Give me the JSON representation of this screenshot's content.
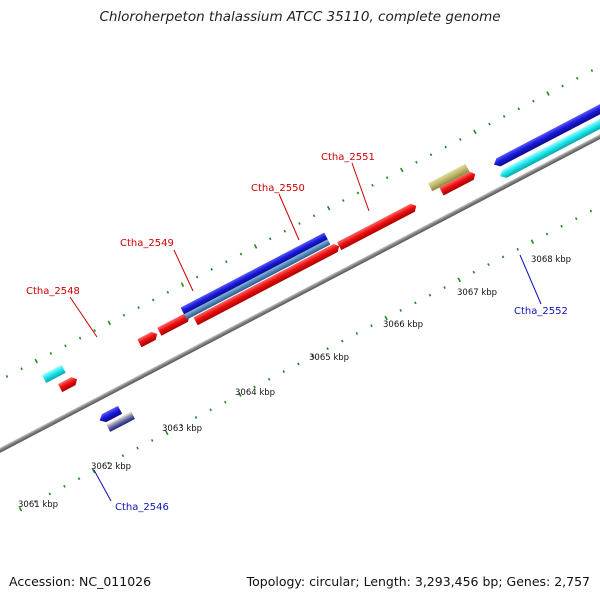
{
  "title": "Chloroherpeton thalassium ATCC 35110, complete genome",
  "footer": {
    "accession": "Accession: NC_011026",
    "topology": "Topology: circular; Length: 3,293,456 bp; Genes: 2,757"
  },
  "ticks": [
    "3061 kbp",
    "3062 kbp",
    "3063 kbp",
    "3064 kbp",
    "3065 kbp",
    "3066 kbp",
    "3067 kbp",
    "3068 kbp"
  ],
  "gene_labels": [
    {
      "name": "Ctha_2546",
      "strand": "minus"
    },
    {
      "name": "Ctha_2548",
      "strand": "plus"
    },
    {
      "name": "Ctha_2549",
      "strand": "plus"
    },
    {
      "name": "Ctha_2550",
      "strand": "plus"
    },
    {
      "name": "Ctha_2551",
      "strand": "plus"
    },
    {
      "name": "Ctha_2552",
      "strand": "minus"
    }
  ],
  "colors": {
    "plus_label": "#cc0000",
    "minus_label": "#1111bb",
    "cds_red": "#ee1111",
    "gene_blue": "#1a1adb",
    "gene_cyan": "#1ee8ee",
    "gene_steel": "#4f86b8",
    "gene_olive": "#bdb66a",
    "backbone": "#808080",
    "dots": "#1f8a1f"
  }
}
